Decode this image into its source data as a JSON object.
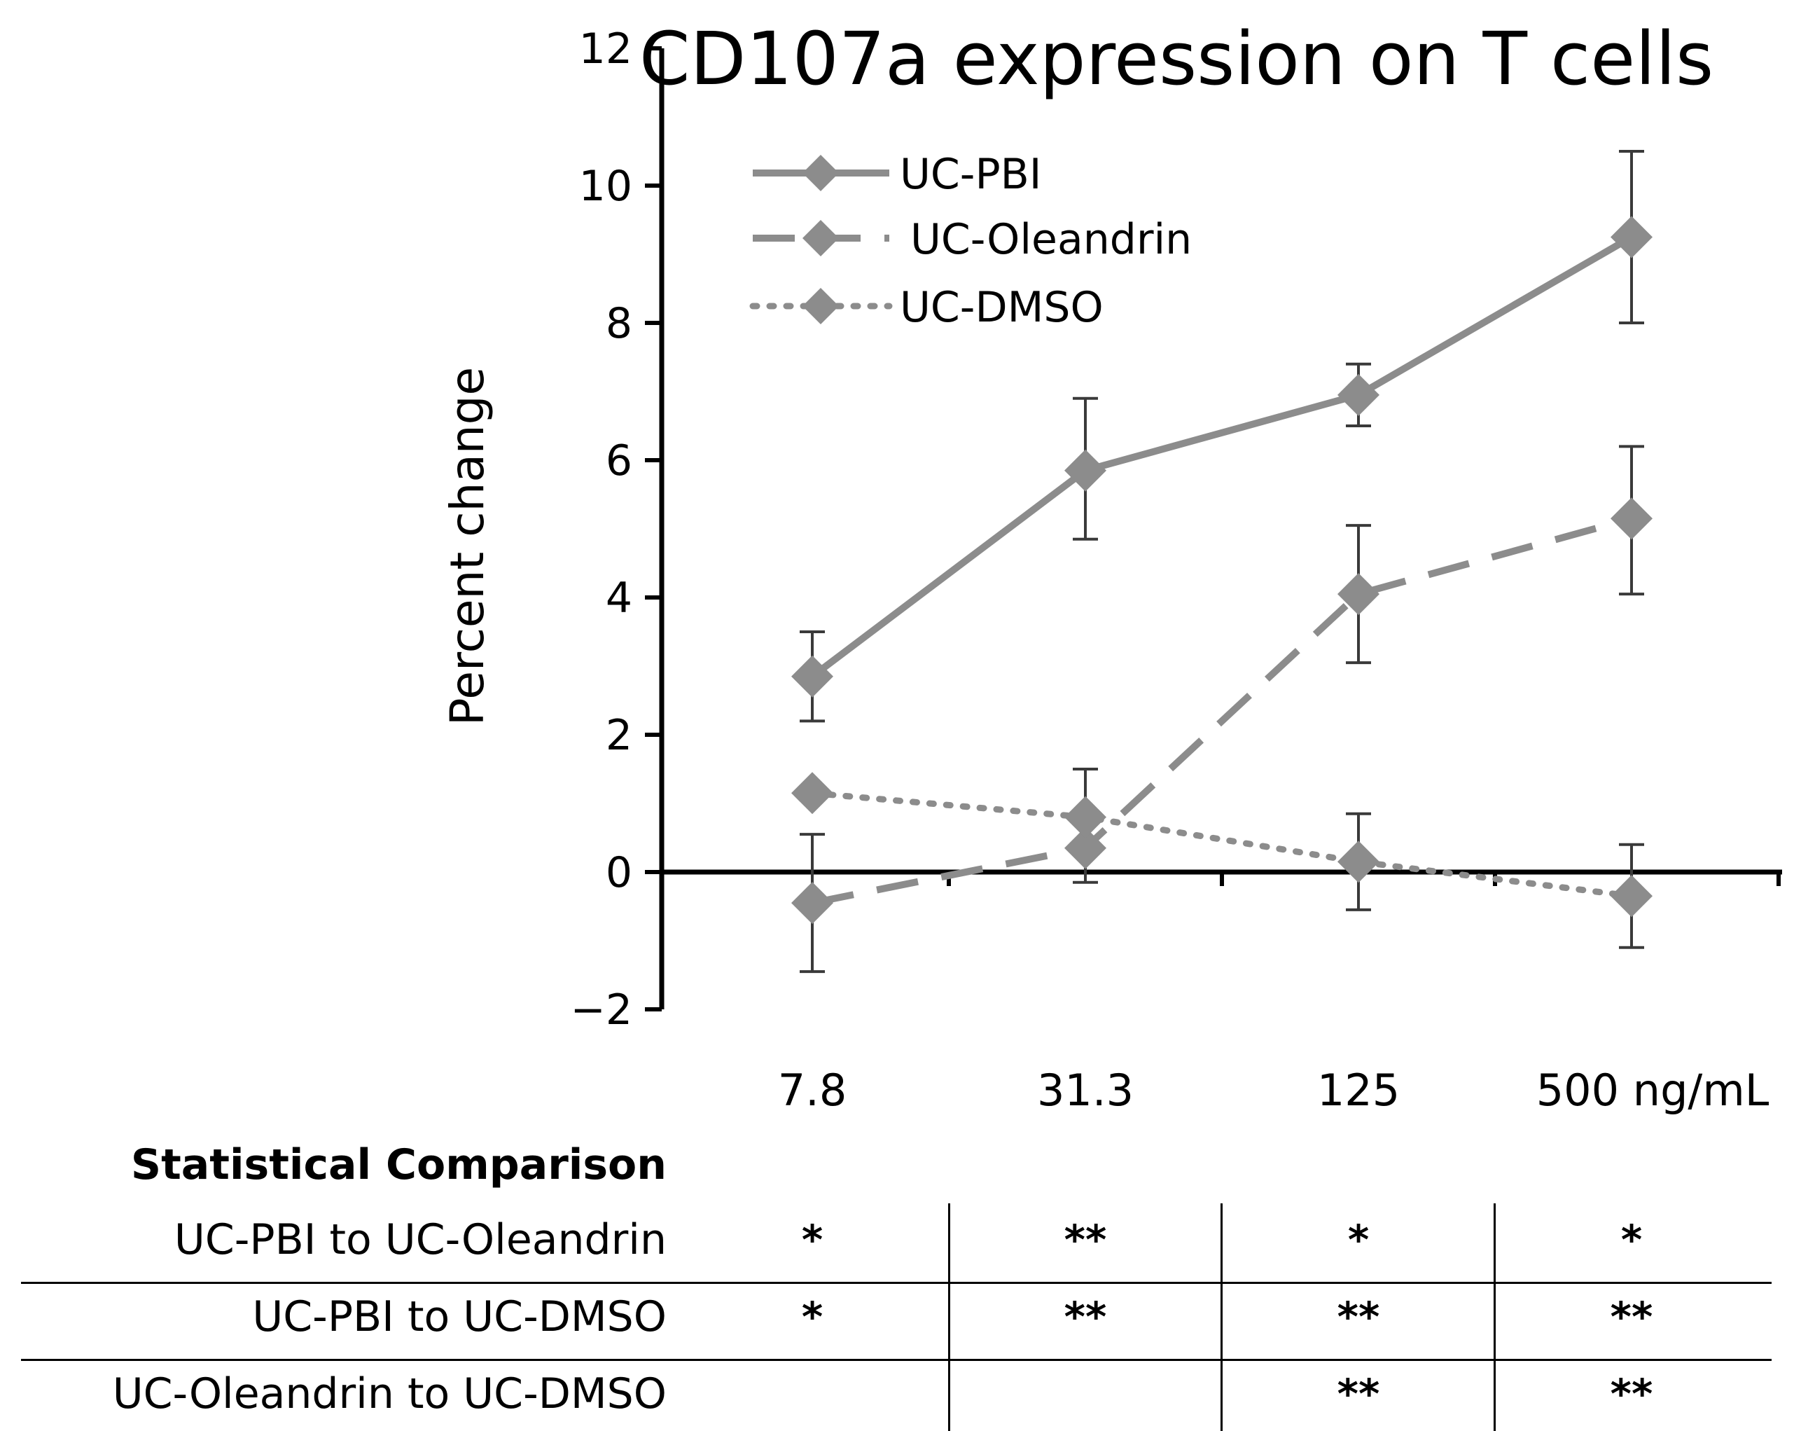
{
  "chart_data": {
    "type": "line",
    "title": "CD107a expression on T cells",
    "ylabel": "Percent change",
    "xlabel": "",
    "categories": [
      "7.8",
      "31.3",
      "125",
      "500 ng/mL"
    ],
    "ylim": [
      -2,
      12
    ],
    "yticks": [
      -2,
      0,
      2,
      4,
      6,
      8,
      10,
      12
    ],
    "ytick_labels": [
      "−2",
      "0",
      "2",
      "4",
      "6",
      "8",
      "10",
      "12"
    ],
    "legend_position": "top-left",
    "series": [
      {
        "name": "UC-PBI",
        "style": "solid",
        "color": "#8c8c8c",
        "values": [
          2.85,
          5.85,
          6.95,
          9.25
        ],
        "err_low": [
          2.2,
          4.85,
          6.5,
          8.0
        ],
        "err_high": [
          3.5,
          6.9,
          7.4,
          10.5
        ]
      },
      {
        "name": "UC-Oleandrin",
        "style": "dashed",
        "color": "#8c8c8c",
        "values": [
          -0.45,
          0.35,
          4.05,
          5.15
        ],
        "err_low": [
          -1.45,
          -0.15,
          3.05,
          4.05
        ],
        "err_high": [
          0.55,
          null,
          5.05,
          6.2
        ]
      },
      {
        "name": "UC-DMSO",
        "style": "dotted",
        "color": "#8c8c8c",
        "values": [
          1.15,
          0.8,
          0.15,
          -0.35
        ],
        "err_low": [
          null,
          null,
          -0.55,
          -1.1
        ],
        "err_high": [
          null,
          1.5,
          0.85,
          0.4
        ]
      }
    ]
  },
  "stats": {
    "header": "Statistical Comparison",
    "rows": [
      {
        "label": "UC-PBI to UC-Oleandrin",
        "cells": [
          "*",
          "**",
          "*",
          "*"
        ]
      },
      {
        "label": "UC-PBI to UC-DMSO",
        "cells": [
          "*",
          "**",
          "**",
          "**"
        ]
      },
      {
        "label": "UC-Oleandrin to UC-DMSO",
        "cells": [
          "",
          "",
          "**",
          "**"
        ]
      }
    ]
  }
}
